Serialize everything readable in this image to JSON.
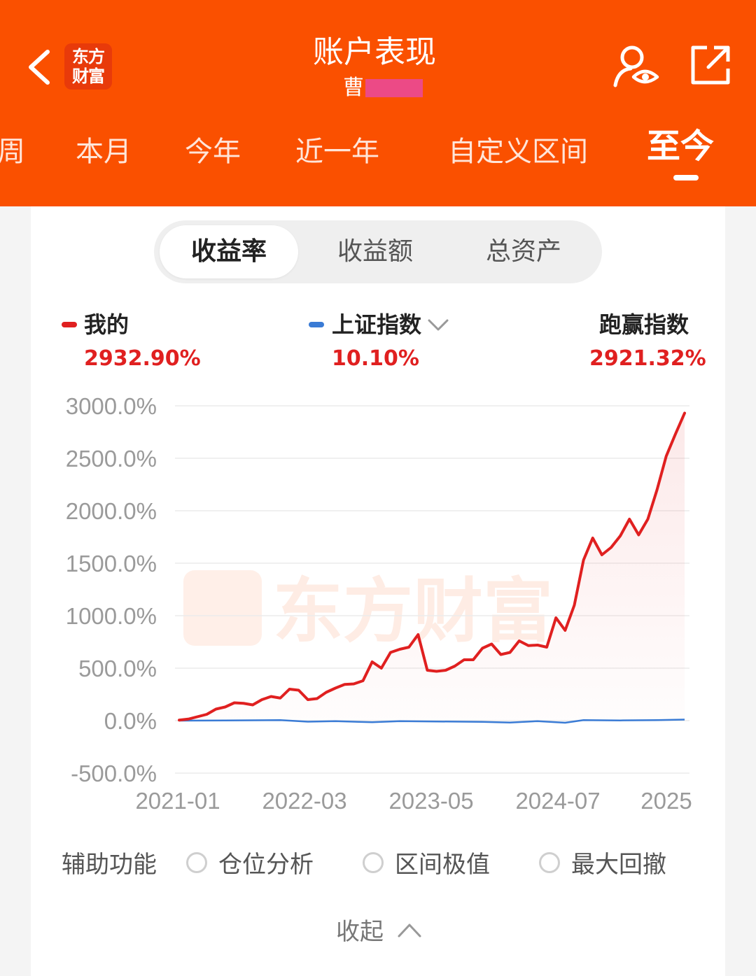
{
  "header": {
    "title": "账户表现",
    "subtitle_prefix": "曹",
    "logo_line1": "东方",
    "logo_line2": "财富"
  },
  "tabs": [
    "周",
    "本月",
    "今年",
    "近一年",
    "自定义区间",
    "至今"
  ],
  "segments": [
    "收益率",
    "收益额",
    "总资产"
  ],
  "legend": {
    "mine_label": "我的",
    "mine_value": "2932.90%",
    "index_label": "上证指数",
    "index_value": "10.10%",
    "beat_label": "跑赢指数",
    "beat_value": "2921.32%"
  },
  "colors": {
    "brand": "#fa5000",
    "mine": "#e02020",
    "index": "#3a7bd5"
  },
  "chart_data": {
    "type": "line",
    "y_ticks": [
      "3000.0%",
      "2500.0%",
      "2000.0%",
      "1500.0%",
      "1000.0%",
      "500.0%",
      "0.0%",
      "-500.0%"
    ],
    "ylim": [
      -500,
      3000
    ],
    "x_ticks": [
      "2021-01",
      "2022-03",
      "2023-05",
      "2024-07",
      "2025"
    ],
    "grid": true,
    "series": [
      {
        "name": "我的",
        "color": "#e02020",
        "points": [
          [
            "2021-01",
            5
          ],
          [
            "2021-02",
            15
          ],
          [
            "2021-04",
            60
          ],
          [
            "2021-05",
            110
          ],
          [
            "2021-06",
            130
          ],
          [
            "2021-07",
            170
          ],
          [
            "2021-08",
            165
          ],
          [
            "2021-09",
            150
          ],
          [
            "2021-10",
            200
          ],
          [
            "2021-11",
            230
          ],
          [
            "2021-12",
            215
          ],
          [
            "2022-01",
            300
          ],
          [
            "2022-02",
            290
          ],
          [
            "2022-03",
            200
          ],
          [
            "2022-04",
            210
          ],
          [
            "2022-05",
            270
          ],
          [
            "2022-06",
            310
          ],
          [
            "2022-07",
            345
          ],
          [
            "2022-08",
            350
          ],
          [
            "2022-09",
            380
          ],
          [
            "2022-10",
            560
          ],
          [
            "2022-11",
            500
          ],
          [
            "2022-12",
            650
          ],
          [
            "2023-01",
            680
          ],
          [
            "2023-02",
            700
          ],
          [
            "2023-03",
            820
          ],
          [
            "2023-04",
            480
          ],
          [
            "2023-05",
            470
          ],
          [
            "2023-06",
            480
          ],
          [
            "2023-07",
            520
          ],
          [
            "2023-08",
            580
          ],
          [
            "2023-09",
            580
          ],
          [
            "2023-10",
            690
          ],
          [
            "2023-11",
            730
          ],
          [
            "2023-12",
            630
          ],
          [
            "2024-01",
            650
          ],
          [
            "2024-02",
            760
          ],
          [
            "2024-03",
            715
          ],
          [
            "2024-04",
            720
          ],
          [
            "2024-05",
            700
          ],
          [
            "2024-06",
            980
          ],
          [
            "2024-07",
            860
          ],
          [
            "2024-08",
            1100
          ],
          [
            "2024-09",
            1530
          ],
          [
            "2024-10",
            1740
          ],
          [
            "2024-11",
            1580
          ],
          [
            "2024-12",
            1650
          ],
          [
            "2025-01",
            1760
          ],
          [
            "2025-02",
            1920
          ],
          [
            "2025-03",
            1770
          ],
          [
            "2025-04",
            1920
          ],
          [
            "2025-05",
            2200
          ],
          [
            "2025-06",
            2520
          ],
          [
            "2025-07",
            2730
          ],
          [
            "2025-08",
            2930
          ]
        ]
      },
      {
        "name": "上证指数",
        "color": "#3a7bd5",
        "points": [
          [
            "2021-01",
            0
          ],
          [
            "2021-06",
            2
          ],
          [
            "2021-12",
            5
          ],
          [
            "2022-03",
            -10
          ],
          [
            "2022-06",
            -5
          ],
          [
            "2022-10",
            -15
          ],
          [
            "2023-01",
            -5
          ],
          [
            "2023-05",
            -8
          ],
          [
            "2023-10",
            -12
          ],
          [
            "2024-01",
            -18
          ],
          [
            "2024-04",
            -5
          ],
          [
            "2024-07",
            -20
          ],
          [
            "2024-09",
            5
          ],
          [
            "2025-01",
            2
          ],
          [
            "2025-05",
            5
          ],
          [
            "2025-08",
            10
          ]
        ]
      }
    ],
    "x_domain": [
      "2021-01",
      "2025-08"
    ]
  },
  "watermark": "东方财富",
  "aux": {
    "label": "辅助功能",
    "options": [
      "仓位分析",
      "区间极值",
      "最大回撤"
    ]
  },
  "collapse_label": "收起"
}
